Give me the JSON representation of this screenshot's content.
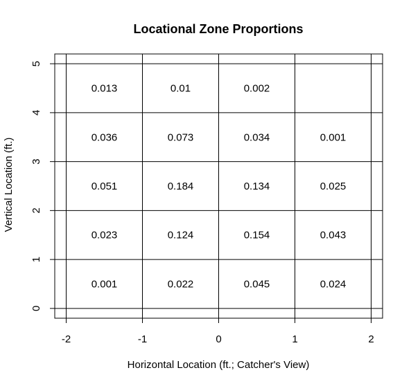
{
  "chart_data": {
    "type": "heatmap",
    "title": "Locational Zone Proportions",
    "xlabel": "Horizontal Location (ft.; Catcher's View)",
    "ylabel": "Vertical Location (ft.)",
    "xlim": [
      -2.15,
      2.15
    ],
    "ylim": [
      -0.2,
      5.2
    ],
    "x_ticks": [
      -2,
      -1,
      0,
      1,
      2
    ],
    "y_ticks": [
      0,
      1,
      2,
      3,
      4,
      5
    ],
    "x_tick_labels": [
      "-2",
      "-1",
      "0",
      "1",
      "2"
    ],
    "y_tick_labels": [
      "0",
      "1",
      "2",
      "3",
      "4",
      "5"
    ],
    "grid": true,
    "grid_lines_x": [
      -2,
      -1,
      0,
      1,
      2
    ],
    "grid_lines_y": [
      0,
      1,
      2,
      3,
      4,
      5
    ],
    "cells": [
      {
        "x": -1.5,
        "y": 4.5,
        "label": "0.013",
        "value": 0.013
      },
      {
        "x": -0.5,
        "y": 4.5,
        "label": "0.01",
        "value": 0.01
      },
      {
        "x": 0.5,
        "y": 4.5,
        "label": "0.002",
        "value": 0.002
      },
      {
        "x": -1.5,
        "y": 3.5,
        "label": "0.036",
        "value": 0.036
      },
      {
        "x": -0.5,
        "y": 3.5,
        "label": "0.073",
        "value": 0.073
      },
      {
        "x": 0.5,
        "y": 3.5,
        "label": "0.034",
        "value": 0.034
      },
      {
        "x": 1.5,
        "y": 3.5,
        "label": "0.001",
        "value": 0.001
      },
      {
        "x": -1.5,
        "y": 2.5,
        "label": "0.051",
        "value": 0.051
      },
      {
        "x": -0.5,
        "y": 2.5,
        "label": "0.184",
        "value": 0.184
      },
      {
        "x": 0.5,
        "y": 2.5,
        "label": "0.134",
        "value": 0.134
      },
      {
        "x": 1.5,
        "y": 2.5,
        "label": "0.025",
        "value": 0.025
      },
      {
        "x": -1.5,
        "y": 1.5,
        "label": "0.023",
        "value": 0.023
      },
      {
        "x": -0.5,
        "y": 1.5,
        "label": "0.124",
        "value": 0.124
      },
      {
        "x": 0.5,
        "y": 1.5,
        "label": "0.154",
        "value": 0.154
      },
      {
        "x": 1.5,
        "y": 1.5,
        "label": "0.043",
        "value": 0.043
      },
      {
        "x": -1.5,
        "y": 0.5,
        "label": "0.001",
        "value": 0.001
      },
      {
        "x": -0.5,
        "y": 0.5,
        "label": "0.022",
        "value": 0.022
      },
      {
        "x": 0.5,
        "y": 0.5,
        "label": "0.045",
        "value": 0.045
      },
      {
        "x": 1.5,
        "y": 0.5,
        "label": "0.024",
        "value": 0.024
      }
    ]
  }
}
